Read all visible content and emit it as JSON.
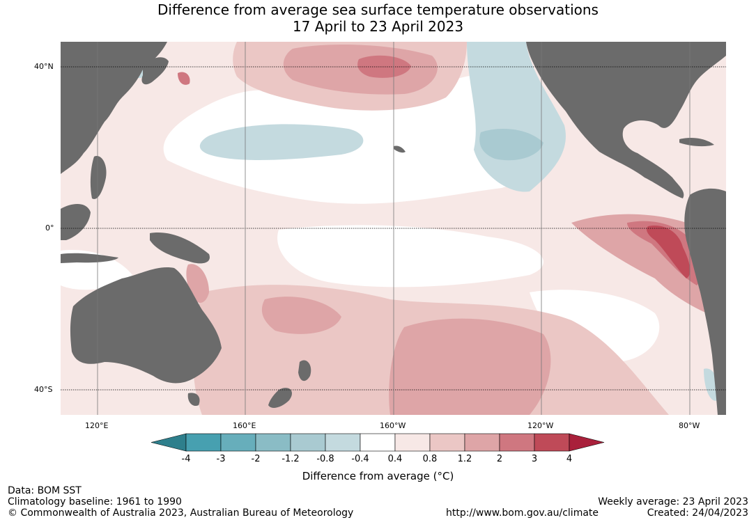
{
  "title": {
    "line1": "Difference from average sea surface temperature observations",
    "line2": "17 April to 23 April 2023"
  },
  "map": {
    "lat_labels": [
      "40°N",
      "0°",
      "40°S"
    ],
    "lon_labels": [
      "120°E",
      "160°E",
      "160°W",
      "120°W",
      "80°W"
    ],
    "land_color": "#6b6b6b",
    "background": "#ffffff"
  },
  "colorbar": {
    "title": "Difference from average (°C)",
    "ticks": [
      "-4",
      "-3",
      "-2",
      "-1.2",
      "-0.8",
      "-0.4",
      "0.4",
      "0.8",
      "1.2",
      "2",
      "3",
      "4"
    ],
    "colors": [
      "#2e7f8c",
      "#47a0b0",
      "#67aebb",
      "#8abcc5",
      "#a9cad1",
      "#c4dadf",
      "#ffffff",
      "#f7e8e6",
      "#ebc7c5",
      "#dea5a7",
      "#cf7780",
      "#bf4a58",
      "#a9203b"
    ]
  },
  "footer": {
    "data": "Data: BOM SST",
    "climatology": "Climatology baseline: 1961 to 1990",
    "copyright": "© Commonwealth of Australia 2023, Australian Bureau of Meteorology",
    "url": "http://www.bom.gov.au/climate",
    "weekly": "Weekly average: 23 April 2023",
    "created": "Created: 24/04/2023"
  }
}
